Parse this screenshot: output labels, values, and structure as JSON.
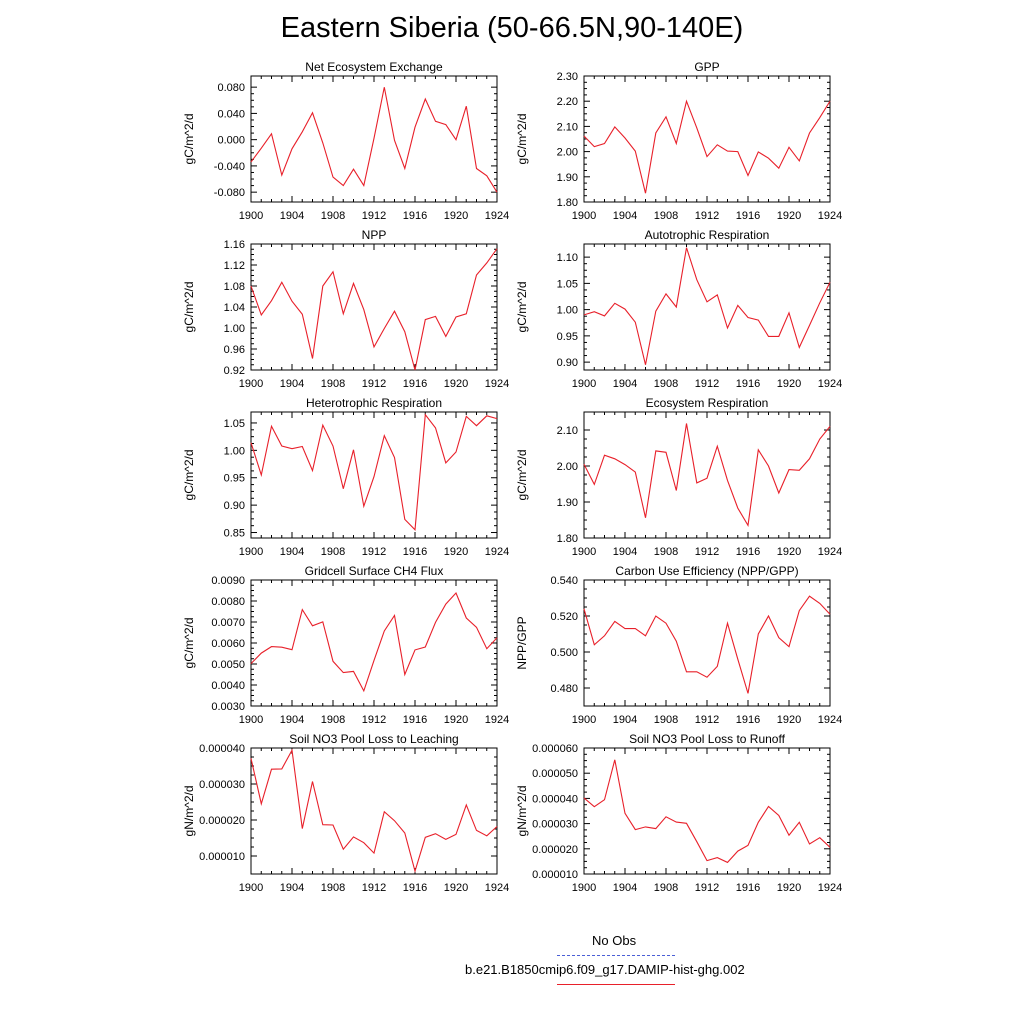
{
  "figure": {
    "title": "Eastern Siberia (50-66.5N,90-140E)",
    "legend": [
      {
        "label": "No Obs",
        "color": "#4a5fd6",
        "style": "dashed"
      },
      {
        "label": "b.e21.B1850cmip6.f09_g17.DAMIP-hist-ghg.002",
        "color": "#e8202a",
        "style": "solid"
      }
    ],
    "line_color": "#e8202a"
  },
  "chart_data": [
    {
      "type": "line",
      "title": "Net Ecosystem Exchange",
      "ylabel": "gC/m^2/d",
      "xlim": [
        1900,
        1924
      ],
      "ylim": [
        -0.095,
        0.097
      ],
      "xticks": [
        "1900",
        "1904",
        "1908",
        "1912",
        "1916",
        "1920",
        "1924"
      ],
      "yticks": [
        "-0.080",
        "-0.040",
        "0.000",
        "0.040",
        "0.080"
      ],
      "yticks_num": [
        -0.08,
        -0.04,
        0.0,
        0.04,
        0.08
      ],
      "x": [
        1900,
        1901,
        1902,
        1903,
        1904,
        1905,
        1906,
        1907,
        1908,
        1909,
        1910,
        1911,
        1912,
        1913,
        1914,
        1915,
        1916,
        1917,
        1918,
        1919,
        1920,
        1921,
        1922,
        1923,
        1924
      ],
      "values": [
        -0.034,
        -0.013,
        0.009,
        -0.054,
        -0.014,
        0.012,
        0.041,
        -0.005,
        -0.057,
        -0.07,
        -0.045,
        -0.07,
        0.002,
        0.08,
        -0.001,
        -0.044,
        0.019,
        0.062,
        0.028,
        0.023,
        0.0,
        0.051,
        -0.044,
        -0.055,
        -0.08
      ]
    },
    {
      "type": "line",
      "title": "GPP",
      "ylabel": "gC/m^2/d",
      "xlim": [
        1900,
        1924
      ],
      "ylim": [
        1.8,
        2.3
      ],
      "xticks": [
        "1900",
        "1904",
        "1908",
        "1912",
        "1916",
        "1920",
        "1924"
      ],
      "yticks": [
        "1.80",
        "1.90",
        "2.00",
        "2.10",
        "2.20",
        "2.30"
      ],
      "yticks_num": [
        1.8,
        1.9,
        2.0,
        2.1,
        2.2,
        2.3
      ],
      "x": [
        1900,
        1901,
        1902,
        1903,
        1904,
        1905,
        1906,
        1907,
        1908,
        1909,
        1910,
        1911,
        1912,
        1913,
        1914,
        1915,
        1916,
        1917,
        1918,
        1919,
        1920,
        1921,
        1922,
        1923,
        1924
      ],
      "values": [
        2.062,
        2.02,
        2.032,
        2.098,
        2.054,
        2.002,
        1.835,
        2.074,
        2.138,
        2.032,
        2.2,
        2.094,
        1.98,
        2.027,
        2.002,
        2.0,
        1.905,
        1.999,
        1.974,
        1.934,
        2.017,
        1.963,
        2.074,
        2.135,
        2.2
      ]
    },
    {
      "type": "line",
      "title": "NPP",
      "ylabel": "gC/m^2/d",
      "xlim": [
        1900,
        1924
      ],
      "ylim": [
        0.92,
        1.16
      ],
      "xticks": [
        "1900",
        "1904",
        "1908",
        "1912",
        "1916",
        "1920",
        "1924"
      ],
      "yticks": [
        "0.92",
        "0.96",
        "1.00",
        "1.04",
        "1.08",
        "1.12",
        "1.16"
      ],
      "yticks_num": [
        0.92,
        0.96,
        1.0,
        1.04,
        1.08,
        1.12,
        1.16
      ],
      "x": [
        1900,
        1901,
        1902,
        1903,
        1904,
        1905,
        1906,
        1907,
        1908,
        1909,
        1910,
        1911,
        1912,
        1913,
        1914,
        1915,
        1916,
        1917,
        1918,
        1919,
        1920,
        1921,
        1922,
        1923,
        1924
      ],
      "values": [
        1.08,
        1.025,
        1.052,
        1.087,
        1.051,
        1.026,
        0.942,
        1.08,
        1.107,
        1.027,
        1.085,
        1.035,
        0.964,
        0.999,
        1.032,
        0.993,
        0.92,
        1.016,
        1.022,
        0.984,
        1.021,
        1.027,
        1.101,
        1.124,
        1.151
      ]
    },
    {
      "type": "line",
      "title": "Autotrophic Respiration",
      "ylabel": "gC/m^2/d",
      "xlim": [
        1900,
        1924
      ],
      "ylim": [
        0.885,
        1.125
      ],
      "xticks": [
        "1900",
        "1904",
        "1908",
        "1912",
        "1916",
        "1920",
        "1924"
      ],
      "yticks": [
        "0.90",
        "0.95",
        "1.00",
        "1.05",
        "1.10"
      ],
      "yticks_num": [
        0.9,
        0.95,
        1.0,
        1.05,
        1.1
      ],
      "x": [
        1900,
        1901,
        1902,
        1903,
        1904,
        1905,
        1906,
        1907,
        1908,
        1909,
        1910,
        1911,
        1912,
        1913,
        1914,
        1915,
        1916,
        1917,
        1918,
        1919,
        1920,
        1921,
        1922,
        1923,
        1924
      ],
      "values": [
        0.99,
        0.996,
        0.988,
        1.012,
        1.001,
        0.976,
        0.895,
        0.997,
        1.03,
        1.005,
        1.118,
        1.057,
        1.015,
        1.028,
        0.965,
        1.008,
        0.985,
        0.98,
        0.949,
        0.949,
        0.994,
        0.928,
        0.97,
        1.013,
        1.052
      ]
    },
    {
      "type": "line",
      "title": "Heterotrophic Respiration",
      "ylabel": "gC/m^2/d",
      "xlim": [
        1900,
        1924
      ],
      "ylim": [
        0.84,
        1.07
      ],
      "xticks": [
        "1900",
        "1904",
        "1908",
        "1912",
        "1916",
        "1920",
        "1924"
      ],
      "yticks": [
        "0.85",
        "0.90",
        "0.95",
        "1.00",
        "1.05"
      ],
      "yticks_num": [
        0.85,
        0.9,
        0.95,
        1.0,
        1.05
      ],
      "x": [
        1900,
        1901,
        1902,
        1903,
        1904,
        1905,
        1906,
        1907,
        1908,
        1909,
        1910,
        1911,
        1912,
        1913,
        1914,
        1915,
        1916,
        1917,
        1918,
        1919,
        1920,
        1921,
        1922,
        1923,
        1924
      ],
      "values": [
        1.014,
        0.955,
        1.044,
        1.008,
        1.003,
        1.007,
        0.963,
        1.046,
        1.008,
        0.93,
        1.001,
        0.898,
        0.952,
        1.027,
        0.987,
        0.874,
        0.855,
        1.065,
        1.041,
        0.977,
        0.997,
        1.062,
        1.045,
        1.063,
        1.058
      ]
    },
    {
      "type": "line",
      "title": "Ecosystem Respiration",
      "ylabel": "gC/m^2/d",
      "xlim": [
        1900,
        1924
      ],
      "ylim": [
        1.8,
        2.15
      ],
      "xticks": [
        "1900",
        "1904",
        "1908",
        "1912",
        "1916",
        "1920",
        "1924"
      ],
      "yticks": [
        "1.80",
        "1.90",
        "2.00",
        "2.10"
      ],
      "yticks_num": [
        1.8,
        1.9,
        2.0,
        2.1
      ],
      "x": [
        1900,
        1901,
        1902,
        1903,
        1904,
        1905,
        1906,
        1907,
        1908,
        1909,
        1910,
        1911,
        1912,
        1913,
        1914,
        1915,
        1916,
        1917,
        1918,
        1919,
        1920,
        1921,
        1922,
        1923,
        1924
      ],
      "values": [
        2.005,
        1.949,
        2.03,
        2.02,
        2.004,
        1.983,
        1.856,
        2.042,
        2.038,
        1.932,
        2.118,
        1.953,
        1.966,
        2.055,
        1.96,
        1.883,
        1.835,
        2.045,
        2.0,
        1.925,
        1.99,
        1.988,
        2.02,
        2.075,
        2.11
      ]
    },
    {
      "type": "line",
      "title": "Gridcell Surface CH4 Flux",
      "ylabel": "gC/m^2/d",
      "xlim": [
        1900,
        1924
      ],
      "ylim": [
        0.003,
        0.009
      ],
      "xticks": [
        "1900",
        "1904",
        "1908",
        "1912",
        "1916",
        "1920",
        "1924"
      ],
      "yticks": [
        "0.0030",
        "0.0040",
        "0.0050",
        "0.0060",
        "0.0070",
        "0.0080",
        "0.0090"
      ],
      "yticks_num": [
        0.003,
        0.004,
        0.005,
        0.006,
        0.007,
        0.008,
        0.009
      ],
      "x": [
        1900,
        1901,
        1902,
        1903,
        1904,
        1905,
        1906,
        1907,
        1908,
        1909,
        1910,
        1911,
        1912,
        1913,
        1914,
        1915,
        1916,
        1917,
        1918,
        1919,
        1920,
        1921,
        1922,
        1923,
        1924
      ],
      "values": [
        0.00502,
        0.00552,
        0.00583,
        0.0058,
        0.00568,
        0.00759,
        0.00682,
        0.00701,
        0.00513,
        0.00459,
        0.00465,
        0.00372,
        0.00517,
        0.00657,
        0.00731,
        0.0045,
        0.00567,
        0.00581,
        0.00698,
        0.00785,
        0.00838,
        0.00719,
        0.00675,
        0.00573,
        0.00625
      ]
    },
    {
      "type": "line",
      "title": "Carbon Use Efficiency (NPP/GPP)",
      "ylabel": "NPP/GPP",
      "xlim": [
        1900,
        1924
      ],
      "ylim": [
        0.47,
        0.54
      ],
      "xticks": [
        "1900",
        "1904",
        "1908",
        "1912",
        "1916",
        "1920",
        "1924"
      ],
      "yticks": [
        "0.480",
        "0.500",
        "0.520",
        "0.540"
      ],
      "yticks_num": [
        0.48,
        0.5,
        0.52,
        0.54
      ],
      "x": [
        1900,
        1901,
        1902,
        1903,
        1904,
        1905,
        1906,
        1907,
        1908,
        1909,
        1910,
        1911,
        1912,
        1913,
        1914,
        1915,
        1916,
        1917,
        1918,
        1919,
        1920,
        1921,
        1922,
        1923,
        1924
      ],
      "values": [
        0.524,
        0.504,
        0.509,
        0.517,
        0.513,
        0.513,
        0.509,
        0.52,
        0.516,
        0.506,
        0.489,
        0.489,
        0.486,
        0.492,
        0.516,
        0.496,
        0.477,
        0.51,
        0.52,
        0.508,
        0.503,
        0.523,
        0.531,
        0.527,
        0.521
      ]
    },
    {
      "type": "line",
      "title": "Soil NO3 Pool Loss to Leaching",
      "ylabel": "gN/m^2/d",
      "xlim": [
        1900,
        1924
      ],
      "ylim": [
        5e-06,
        4e-05
      ],
      "xticks": [
        "1900",
        "1904",
        "1908",
        "1912",
        "1916",
        "1920",
        "1924"
      ],
      "yticks": [
        "0.000010",
        "0.000020",
        "0.000030",
        "0.000040"
      ],
      "yticks_num": [
        1e-05,
        2e-05,
        3e-05,
        4e-05
      ],
      "x": [
        1900,
        1901,
        1902,
        1903,
        1904,
        1905,
        1906,
        1907,
        1908,
        1909,
        1910,
        1911,
        1912,
        1913,
        1914,
        1915,
        1916,
        1917,
        1918,
        1919,
        1920,
        1921,
        1922,
        1923,
        1924
      ],
      "values": [
        3.71e-05,
        2.45e-05,
        3.41e-05,
        3.42e-05,
        3.94e-05,
        1.76e-05,
        3.07e-05,
        1.87e-05,
        1.86e-05,
        1.19e-05,
        1.53e-05,
        1.37e-05,
        1.08e-05,
        2.23e-05,
        1.98e-05,
        1.64e-05,
        5.8e-06,
        1.52e-05,
        1.62e-05,
        1.46e-05,
        1.6e-05,
        2.42e-05,
        1.71e-05,
        1.56e-05,
        1.82e-05
      ]
    },
    {
      "type": "line",
      "title": "Soil NO3 Pool Loss to Runoff",
      "ylabel": "gN/m^2/d",
      "xlim": [
        1900,
        1924
      ],
      "ylim": [
        1e-05,
        6e-05
      ],
      "xticks": [
        "1900",
        "1904",
        "1908",
        "1912",
        "1916",
        "1920",
        "1924"
      ],
      "yticks": [
        "0.000010",
        "0.000020",
        "0.000030",
        "0.000040",
        "0.000050",
        "0.000060"
      ],
      "yticks_num": [
        1e-05,
        2e-05,
        3e-05,
        4e-05,
        5e-05,
        6e-05
      ],
      "x": [
        1900,
        1901,
        1902,
        1903,
        1904,
        1905,
        1906,
        1907,
        1908,
        1909,
        1910,
        1911,
        1912,
        1913,
        1914,
        1915,
        1916,
        1917,
        1918,
        1919,
        1920,
        1921,
        1922,
        1923,
        1924
      ],
      "values": [
        4.02e-05,
        3.67e-05,
        3.95e-05,
        5.53e-05,
        3.41e-05,
        2.76e-05,
        2.87e-05,
        2.8e-05,
        3.27e-05,
        3.06e-05,
        3.01e-05,
        2.28e-05,
        1.53e-05,
        1.65e-05,
        1.46e-05,
        1.91e-05,
        2.14e-05,
        3.05e-05,
        3.68e-05,
        3.32e-05,
        2.54e-05,
        3.05e-05,
        2.19e-05,
        2.44e-05,
        2.06e-05
      ]
    }
  ]
}
